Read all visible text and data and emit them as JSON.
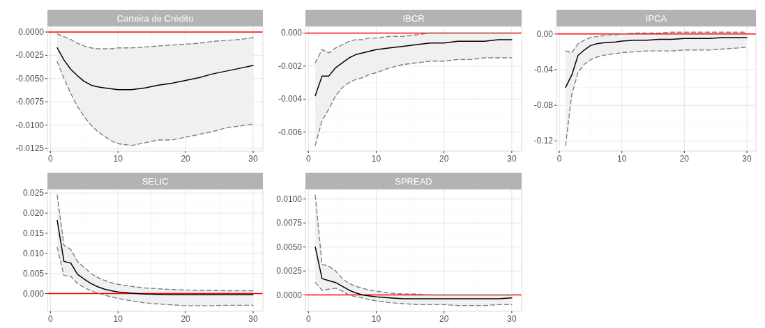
{
  "chart_data": [
    {
      "type": "line",
      "title": "Carteira de Crédito",
      "x": [
        1,
        2,
        3,
        4,
        5,
        6,
        7,
        8,
        9,
        10,
        12,
        14,
        16,
        18,
        20,
        22,
        24,
        26,
        28,
        30
      ],
      "series": [
        {
          "color": "#000000",
          "values": [
            -0.0017,
            -0.003,
            -0.004,
            -0.0047,
            -0.0053,
            -0.0057,
            -0.0059,
            -0.006,
            -0.0061,
            -0.0062,
            -0.0062,
            -0.006,
            -0.0057,
            -0.0055,
            -0.0052,
            -0.0049,
            -0.0045,
            -0.0042,
            -0.0039,
            -0.0036
          ],
          "upper": [
            -0.0002,
            -0.0005,
            -0.0008,
            -0.0012,
            -0.0015,
            -0.0017,
            -0.0018,
            -0.0018,
            -0.0018,
            -0.0017,
            -0.0017,
            -0.0016,
            -0.0015,
            -0.0014,
            -0.0013,
            -0.0012,
            -0.001,
            -0.0009,
            -0.0008,
            -0.0006
          ],
          "lower": [
            -0.0032,
            -0.005,
            -0.0066,
            -0.008,
            -0.0091,
            -0.01,
            -0.0107,
            -0.0112,
            -0.0117,
            -0.012,
            -0.0122,
            -0.0119,
            -0.0116,
            -0.0116,
            -0.0113,
            -0.011,
            -0.0107,
            -0.0103,
            -0.0101,
            -0.0099
          ]
        },
        {
          "color": "#808080",
          "line_style": "dashed",
          "values": [
            -0.0002,
            -0.0005,
            -0.0008,
            -0.0012,
            -0.0015,
            -0.0017,
            -0.0018,
            -0.0018,
            -0.0018,
            -0.0017,
            -0.0017,
            -0.0016,
            -0.0015,
            -0.0014,
            -0.0013,
            -0.0012,
            -0.001,
            -0.0009,
            -0.0008,
            -0.0006
          ]
        },
        {
          "color": "#808080",
          "line_style": "dashed",
          "values": [
            -0.0032,
            -0.005,
            -0.0066,
            -0.008,
            -0.0091,
            -0.01,
            -0.0107,
            -0.0112,
            -0.0117,
            -0.012,
            -0.0122,
            -0.0119,
            -0.0116,
            -0.0116,
            -0.0113,
            -0.011,
            -0.0107,
            -0.0103,
            -0.0101,
            -0.0099
          ]
        }
      ],
      "xlim": [
        -0.45,
        31.45
      ],
      "xticks": [
        0,
        10,
        20,
        30
      ],
      "ylim": [
        -0.0128,
        0.0006
      ],
      "yticks": [
        {
          "value": 0,
          "label": "0.0000"
        },
        {
          "value": -0.0025,
          "label": "-0.0025"
        },
        {
          "value": -0.005,
          "label": "-0.0050"
        },
        {
          "value": -0.0075,
          "label": "-0.0075"
        },
        {
          "value": -0.01,
          "label": "-0.0100"
        },
        {
          "value": -0.0125,
          "label": "-0.0125"
        }
      ],
      "grid": true,
      "ref_lines": [
        {
          "axis": "y",
          "value": 0,
          "color": "#ff0000"
        }
      ]
    },
    {
      "type": "line",
      "title": "IBCR",
      "x": [
        1,
        2,
        3,
        4,
        5,
        6,
        7,
        8,
        9,
        10,
        12,
        14,
        16,
        18,
        20,
        22,
        24,
        26,
        28,
        30
      ],
      "series": [
        {
          "color": "#000000",
          "values": [
            -0.0038,
            -0.0026,
            -0.0026,
            -0.0021,
            -0.0018,
            -0.0015,
            -0.0013,
            -0.0012,
            -0.0011,
            -0.001,
            -0.0009,
            -0.0008,
            -0.0007,
            -0.0006,
            -0.0006,
            -0.0005,
            -0.0005,
            -0.0005,
            -0.0004,
            -0.0004
          ],
          "upper": [
            -0.0018,
            -0.001,
            -0.0012,
            -0.0009,
            -0.0007,
            -0.0005,
            -0.0004,
            -0.0004,
            -0.0003,
            -0.0003,
            -0.0002,
            -0.0002,
            -0.0001,
            0,
            0,
            0,
            0,
            0,
            0,
            0
          ],
          "lower": [
            -0.0068,
            -0.0053,
            -0.0046,
            -0.0038,
            -0.0033,
            -0.003,
            -0.0028,
            -0.0027,
            -0.0025,
            -0.0024,
            -0.0021,
            -0.0019,
            -0.0018,
            -0.0017,
            -0.0017,
            -0.0016,
            -0.0016,
            -0.0015,
            -0.0015,
            -0.0015
          ]
        },
        {
          "color": "#808080",
          "line_style": "dashed",
          "values": [
            -0.0018,
            -0.001,
            -0.0012,
            -0.0009,
            -0.0007,
            -0.0005,
            -0.0004,
            -0.0004,
            -0.0003,
            -0.0003,
            -0.0002,
            -0.0002,
            -0.0001,
            0,
            0,
            0,
            0,
            0,
            0,
            0
          ]
        },
        {
          "color": "#808080",
          "line_style": "dashed",
          "values": [
            -0.0068,
            -0.0053,
            -0.0046,
            -0.0038,
            -0.0033,
            -0.003,
            -0.0028,
            -0.0027,
            -0.0025,
            -0.0024,
            -0.0021,
            -0.0019,
            -0.0018,
            -0.0017,
            -0.0017,
            -0.0016,
            -0.0016,
            -0.0015,
            -0.0015,
            -0.0015
          ]
        }
      ],
      "xlim": [
        -0.45,
        31.45
      ],
      "xticks": [
        0,
        10,
        20,
        30
      ],
      "ylim": [
        -0.00715,
        0.0004
      ],
      "yticks": [
        {
          "value": 0,
          "label": "0.000"
        },
        {
          "value": -0.002,
          "label": "-0.002"
        },
        {
          "value": -0.004,
          "label": "-0.004"
        },
        {
          "value": -0.006,
          "label": "-0.006"
        }
      ],
      "grid": true,
      "ref_lines": [
        {
          "axis": "y",
          "value": 0,
          "color": "#ff0000"
        }
      ]
    },
    {
      "type": "line",
      "title": "IPCA",
      "x": [
        1,
        2,
        3,
        4,
        5,
        6,
        7,
        8,
        9,
        10,
        12,
        14,
        16,
        18,
        20,
        22,
        24,
        26,
        28,
        30
      ],
      "series": [
        {
          "color": "#000000",
          "values": [
            -0.06,
            -0.046,
            -0.024,
            -0.018,
            -0.013,
            -0.011,
            -0.01,
            -0.0095,
            -0.009,
            -0.008,
            -0.007,
            -0.007,
            -0.006,
            -0.006,
            -0.005,
            -0.005,
            -0.005,
            -0.004,
            -0.004,
            -0.004
          ],
          "upper": [
            -0.019,
            -0.021,
            -0.011,
            -0.007,
            -0.004,
            -0.003,
            -0.002,
            -0.001,
            -0.001,
            0,
            0.001,
            0.001,
            0.001,
            0.002,
            0.002,
            0.002,
            0.002,
            0.002,
            0.002,
            0.002
          ],
          "lower": [
            -0.125,
            -0.068,
            -0.043,
            -0.034,
            -0.029,
            -0.026,
            -0.024,
            -0.023,
            -0.022,
            -0.021,
            -0.02,
            -0.019,
            -0.019,
            -0.019,
            -0.018,
            -0.018,
            -0.018,
            -0.017,
            -0.016,
            -0.015
          ]
        },
        {
          "color": "#808080",
          "line_style": "dashed",
          "values": [
            -0.019,
            -0.021,
            -0.011,
            -0.007,
            -0.004,
            -0.003,
            -0.002,
            -0.001,
            -0.001,
            0,
            0.001,
            0.001,
            0.001,
            0.002,
            0.002,
            0.002,
            0.002,
            0.002,
            0.002,
            0.002
          ]
        },
        {
          "color": "#808080",
          "line_style": "dashed",
          "values": [
            -0.125,
            -0.068,
            -0.043,
            -0.034,
            -0.029,
            -0.026,
            -0.024,
            -0.023,
            -0.022,
            -0.021,
            -0.02,
            -0.019,
            -0.019,
            -0.019,
            -0.018,
            -0.018,
            -0.018,
            -0.017,
            -0.016,
            -0.015
          ]
        }
      ],
      "xlim": [
        -0.45,
        31.45
      ],
      "xticks": [
        0,
        10,
        20,
        30
      ],
      "ylim": [
        -0.1314,
        0.0084
      ],
      "yticks": [
        {
          "value": 0,
          "label": "0.00"
        },
        {
          "value": -0.04,
          "label": "-0.04"
        },
        {
          "value": -0.08,
          "label": "-0.08"
        },
        {
          "value": -0.12,
          "label": "-0.12"
        }
      ],
      "grid": true,
      "ref_lines": [
        {
          "axis": "y",
          "value": 0,
          "color": "#ff0000"
        }
      ]
    },
    {
      "type": "line",
      "title": "SELIC",
      "x": [
        1,
        2,
        3,
        4,
        5,
        6,
        7,
        8,
        9,
        10,
        12,
        14,
        16,
        18,
        20,
        22,
        24,
        26,
        28,
        30
      ],
      "series": [
        {
          "color": "#000000",
          "values": [
            0.0182,
            0.008,
            0.0076,
            0.0048,
            0.0036,
            0.0025,
            0.0017,
            0.0011,
            0.0007,
            0.0004,
            0.0001,
            -0.0001,
            -0.0002,
            -0.0003,
            -0.0003,
            -0.0003,
            -0.0003,
            -0.0003,
            -0.0003,
            -0.0003
          ],
          "upper": [
            0.0245,
            0.012,
            0.011,
            0.008,
            0.0065,
            0.005,
            0.004,
            0.0033,
            0.0027,
            0.0023,
            0.0018,
            0.0014,
            0.0012,
            0.001,
            0.0009,
            0.0008,
            0.0008,
            0.0007,
            0.0007,
            0.0007
          ],
          "lower": [
            0.0115,
            0.0045,
            0.0043,
            0.0025,
            0.0015,
            0.0007,
            0.0001,
            -0.0004,
            -0.0008,
            -0.0012,
            -0.0018,
            -0.0023,
            -0.0026,
            -0.0028,
            -0.003,
            -0.003,
            -0.003,
            -0.0029,
            -0.0029,
            -0.0029
          ]
        },
        {
          "color": "#808080",
          "line_style": "dashed",
          "values": [
            0.0245,
            0.012,
            0.011,
            0.008,
            0.0065,
            0.005,
            0.004,
            0.0033,
            0.0027,
            0.0023,
            0.0018,
            0.0014,
            0.0012,
            0.001,
            0.0009,
            0.0008,
            0.0008,
            0.0007,
            0.0007,
            0.0007
          ]
        },
        {
          "color": "#808080",
          "line_style": "dashed",
          "values": [
            0.0115,
            0.0045,
            0.0043,
            0.0025,
            0.0015,
            0.0007,
            0.0001,
            -0.0004,
            -0.0008,
            -0.0012,
            -0.0018,
            -0.0023,
            -0.0026,
            -0.0028,
            -0.003,
            -0.003,
            -0.003,
            -0.0029,
            -0.0029,
            -0.0029
          ]
        }
      ],
      "xlim": [
        -0.45,
        31.45
      ],
      "xticks": [
        0,
        10,
        20,
        30
      ],
      "ylim": [
        -0.0044,
        0.0259
      ],
      "yticks": [
        {
          "value": 0,
          "label": "0.000"
        },
        {
          "value": 0.005,
          "label": "0.005"
        },
        {
          "value": 0.01,
          "label": "0.010"
        },
        {
          "value": 0.015,
          "label": "0.015"
        },
        {
          "value": 0.02,
          "label": "0.020"
        },
        {
          "value": 0.025,
          "label": "0.025"
        }
      ],
      "grid": true,
      "ref_lines": [
        {
          "axis": "y",
          "value": 0,
          "color": "#ff0000"
        }
      ]
    },
    {
      "type": "line",
      "title": "SPREAD",
      "x": [
        1,
        2,
        3,
        4,
        5,
        6,
        7,
        8,
        9,
        10,
        12,
        14,
        16,
        18,
        20,
        22,
        24,
        26,
        28,
        30
      ],
      "series": [
        {
          "color": "#000000",
          "values": [
            0.005,
            0.0017,
            0.0015,
            0.0013,
            0.0009,
            0.0005,
            0.0002,
            0,
            -0.0001,
            -0.0002,
            -0.0003,
            -0.0004,
            -0.0004,
            -0.0004,
            -0.0004,
            -0.0004,
            -0.0004,
            -0.0004,
            -0.0004,
            -0.0003
          ],
          "upper": [
            0.0104,
            0.0032,
            0.003,
            0.0025,
            0.0017,
            0.0012,
            0.0009,
            0.0007,
            0.0005,
            0.0004,
            0.0002,
            0.0001,
            0.0001,
            0,
            0,
            0,
            0,
            0,
            0,
            0
          ],
          "lower": [
            0.0013,
            0.0005,
            0.0006,
            0.0007,
            0.0004,
            0,
            -0.0002,
            -0.0003,
            -0.0005,
            -0.0006,
            -0.0008,
            -0.0009,
            -0.001,
            -0.001,
            -0.001,
            -0.0011,
            -0.0011,
            -0.0011,
            -0.001,
            -0.001
          ]
        },
        {
          "color": "#808080",
          "line_style": "dashed",
          "values": [
            0.0104,
            0.0032,
            0.003,
            0.0025,
            0.0017,
            0.0012,
            0.0009,
            0.0007,
            0.0005,
            0.0004,
            0.0002,
            0.0001,
            0.0001,
            0,
            0,
            0,
            0,
            0,
            0,
            0
          ]
        },
        {
          "color": "#808080",
          "line_style": "dashed",
          "values": [
            0.0013,
            0.0005,
            0.0006,
            0.0007,
            0.0004,
            0,
            -0.0002,
            -0.0003,
            -0.0005,
            -0.0006,
            -0.0008,
            -0.0009,
            -0.001,
            -0.001,
            -0.001,
            -0.0011,
            -0.0011,
            -0.0011,
            -0.001,
            -0.001
          ]
        }
      ],
      "xlim": [
        -0.45,
        31.45
      ],
      "xticks": [
        0,
        10,
        20,
        30
      ],
      "ylim": [
        -0.0017,
        0.011
      ],
      "yticks": [
        {
          "value": 0,
          "label": "0.0000"
        },
        {
          "value": 0.0025,
          "label": "0.0025"
        },
        {
          "value": 0.005,
          "label": "0.0050"
        },
        {
          "value": 0.0075,
          "label": "0.0075"
        },
        {
          "value": 0.01,
          "label": "0.0100"
        }
      ],
      "grid": true,
      "ref_lines": [
        {
          "axis": "y",
          "value": 0,
          "color": "#ff0000"
        }
      ]
    }
  ]
}
